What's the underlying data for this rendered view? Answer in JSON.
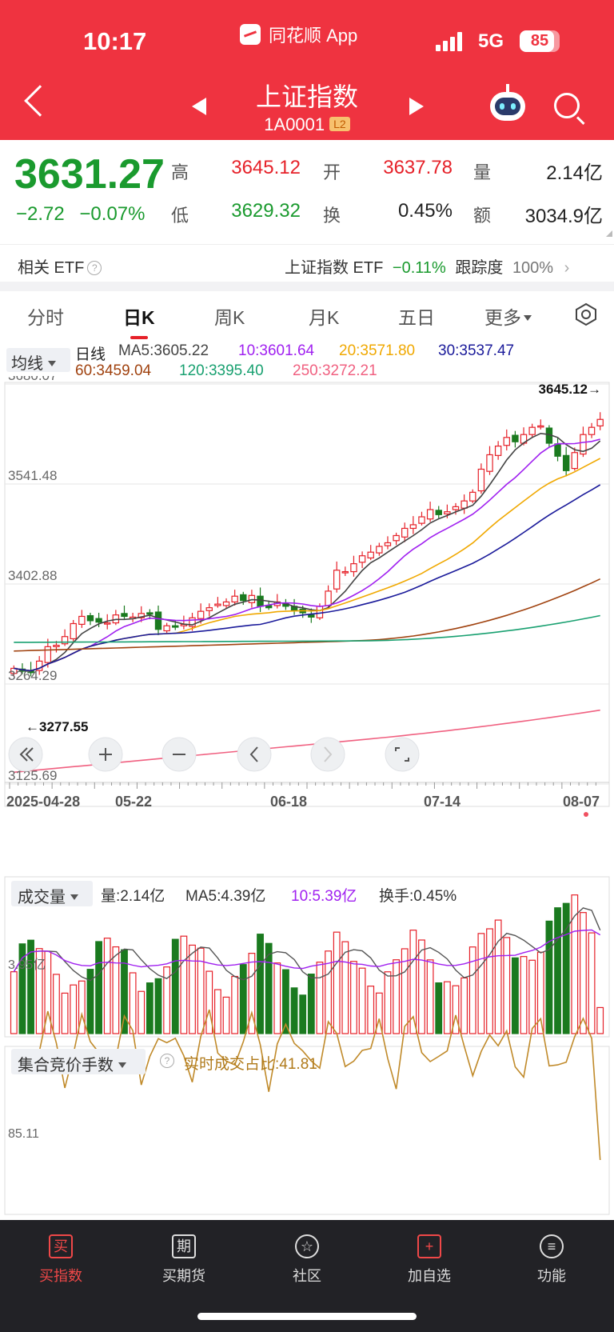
{
  "status": {
    "time": "10:17",
    "app": "同花顺 App",
    "network": "5G",
    "battery": "85",
    "battery_level": 0.85
  },
  "header": {
    "title": "上证指数",
    "code": "1A0001",
    "badge": "L2"
  },
  "quote": {
    "price": "3631.27",
    "change": "−2.72",
    "change_pct": "−0.07%",
    "high_label": "高",
    "high": "3645.12",
    "open_label": "开",
    "open": "3637.78",
    "vol_label": "量",
    "vol": "2.14亿",
    "low_label": "低",
    "low": "3629.32",
    "turn_label": "换",
    "turn": "0.45%",
    "amt_label": "额",
    "amt": "3034.9亿"
  },
  "etf": {
    "label": "相关 ETF",
    "name": "上证指数 ETF",
    "change": "−0.11%",
    "track_label": "跟踪度",
    "track": "100%"
  },
  "tabs": [
    "分时",
    "日K",
    "周K",
    "月K",
    "五日",
    "更多"
  ],
  "ma": {
    "select": "均线",
    "kind": "日线",
    "ma5": "MA5:3605.22",
    "ma10": "10:3601.64",
    "ma20": "20:3571.80",
    "ma30": "30:3537.47",
    "ma60": "60:3459.04",
    "ma120": "120:3395.40",
    "ma250": "250:3272.21"
  },
  "chart_data": {
    "type": "candlestick",
    "y_ticks": [
      "3680.07",
      "3541.48",
      "3402.88",
      "3264.29",
      "3125.69"
    ],
    "ylim": [
      3125.69,
      3680.07
    ],
    "x_ticks": [
      "2025-04-28",
      "05-22",
      "06-18",
      "07-14",
      "08-07"
    ],
    "max_label": "3645.12→",
    "min_label": "←3277.55",
    "closes": [
      3286,
      3282,
      3280,
      3296,
      3316,
      3318,
      3330,
      3348,
      3358,
      3352,
      3350,
      3349,
      3360,
      3358,
      3357,
      3362,
      3361,
      3340,
      3345,
      3343,
      3347,
      3356,
      3365,
      3370,
      3375,
      3378,
      3386,
      3380,
      3387,
      3372,
      3370,
      3378,
      3372,
      3366,
      3363,
      3357,
      3372,
      3393,
      3422,
      3420,
      3431,
      3442,
      3447,
      3455,
      3460,
      3470,
      3480,
      3485,
      3496,
      3506,
      3499,
      3503,
      3510,
      3518,
      3530,
      3562,
      3582,
      3594,
      3606,
      3600,
      3610,
      3620,
      3622,
      3598,
      3580,
      3560,
      3585,
      3610,
      3620,
      3631
    ]
  },
  "volume": {
    "select": "成交量",
    "vol": "量:2.14亿",
    "ma5": "MA5:4.39亿",
    "ma10": "10:5.39亿",
    "turn": "换手:0.45%",
    "ref": "3.95亿"
  },
  "auction": {
    "select": "集合竞价手数",
    "ratio": "实时成交占比:41.81",
    "ref": "85.11"
  },
  "nav": [
    "买指数",
    "买期货",
    "社区",
    "加自选",
    "功能"
  ],
  "nav_icons": [
    "buy-icon",
    "futures-icon",
    "community-icon",
    "add-watch-icon",
    "menu-icon"
  ],
  "colors": {
    "up": "#e62129",
    "down": "#1a7a1f",
    "header": "#ef3340",
    "ma5": "#444444",
    "ma10": "#a020f0",
    "ma20": "#f0a800",
    "ma30": "#1a1a9a",
    "ma60": "#a0420f",
    "ma120": "#18a070",
    "ma250": "#f06080"
  }
}
